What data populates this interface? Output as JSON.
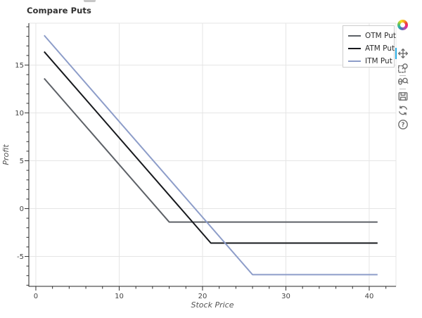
{
  "title": "Compare Puts",
  "chart_data": {
    "type": "line",
    "title": "Compare Puts",
    "xlabel": "Stock Price",
    "ylabel": "Profit",
    "xlim": [
      -0.84,
      43.21
    ],
    "ylim": [
      -8.12,
      19.37
    ],
    "x_major_ticks": [
      0,
      10,
      20,
      30,
      40
    ],
    "x_minor_tick_step": 2,
    "y_major_ticks": [
      -5,
      0,
      5,
      10,
      15
    ],
    "y_minor_tick_step": 1,
    "grid": true,
    "legend": {
      "position": "top-right",
      "entries": [
        "OTM Put",
        "ATM Put",
        "ITM Put"
      ]
    },
    "series": [
      {
        "name": "OTM Put",
        "color": "#5d6167",
        "points": [
          [
            1,
            13.6
          ],
          [
            16,
            -1.4
          ],
          [
            41,
            -1.4
          ]
        ]
      },
      {
        "name": "ATM Put",
        "color": "#17191d",
        "points": [
          [
            1,
            16.4
          ],
          [
            21,
            -3.6
          ],
          [
            41,
            -3.6
          ]
        ]
      },
      {
        "name": "ITM Put",
        "color": "#8d9dc9",
        "points": [
          [
            1,
            18.1
          ],
          [
            26,
            -6.9
          ],
          [
            41,
            -6.9
          ]
        ]
      }
    ]
  },
  "toolbar": {
    "logo": "bokeh-logo",
    "tools": [
      {
        "id": "pan",
        "icon": "pan-icon",
        "active": true
      },
      {
        "id": "box-zoom",
        "icon": "box-zoom-icon",
        "active": false
      },
      {
        "id": "wheel-zoom",
        "icon": "wheel-zoom-icon",
        "active": false
      },
      {
        "id": "save",
        "icon": "save-icon",
        "active": false
      },
      {
        "id": "reset",
        "icon": "reset-icon",
        "active": false
      },
      {
        "id": "help",
        "icon": "help-icon",
        "active": false
      }
    ],
    "active_indicator_color": "#26aae1"
  },
  "colors": {
    "grid": "#e5e5e5",
    "outline": "#e5e5e5",
    "axis": "#262626",
    "tick": "#333333",
    "tick_label": "#444444",
    "axis_label": "#555555",
    "legend_border": "#cccccc"
  }
}
